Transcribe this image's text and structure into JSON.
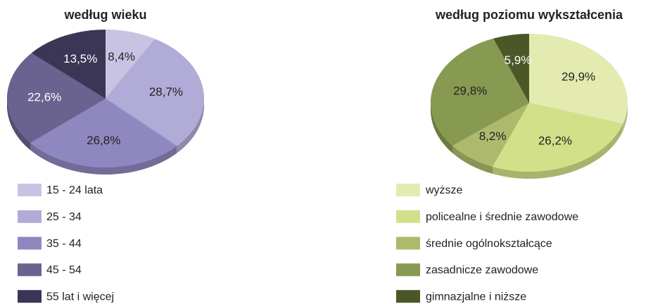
{
  "chart_data": [
    {
      "type": "pie",
      "title": "według wieku",
      "categories": [
        "15 - 24 lata",
        "25 - 34",
        "35 - 44",
        "45 - 54",
        "55 lat i więcej"
      ],
      "values": [
        8.4,
        28.7,
        26.8,
        22.6,
        13.5
      ],
      "value_labels": [
        "8,4%",
        "28,7%",
        "26,8%",
        "22,6%",
        "13,5%"
      ],
      "colors": [
        "#c9c3e3",
        "#b1abd8",
        "#8f87bf",
        "#6a628f",
        "#3b3655"
      ]
    },
    {
      "type": "pie",
      "title": "według poziomu wykształcenia",
      "categories": [
        "wyższe",
        "policealne i średnie zawodowe",
        "średnie ogólnokształcące",
        "zasadnicze zawodowe",
        "gimnazjalne i niższe"
      ],
      "values": [
        29.9,
        26.2,
        8.2,
        29.8,
        5.9
      ],
      "value_labels": [
        "29,9%",
        "26,2%",
        "8,2%",
        "29,8%",
        "5,9%"
      ],
      "colors": [
        "#e3ebb1",
        "#d3e08a",
        "#adb96c",
        "#889a52",
        "#4c5727"
      ]
    }
  ]
}
